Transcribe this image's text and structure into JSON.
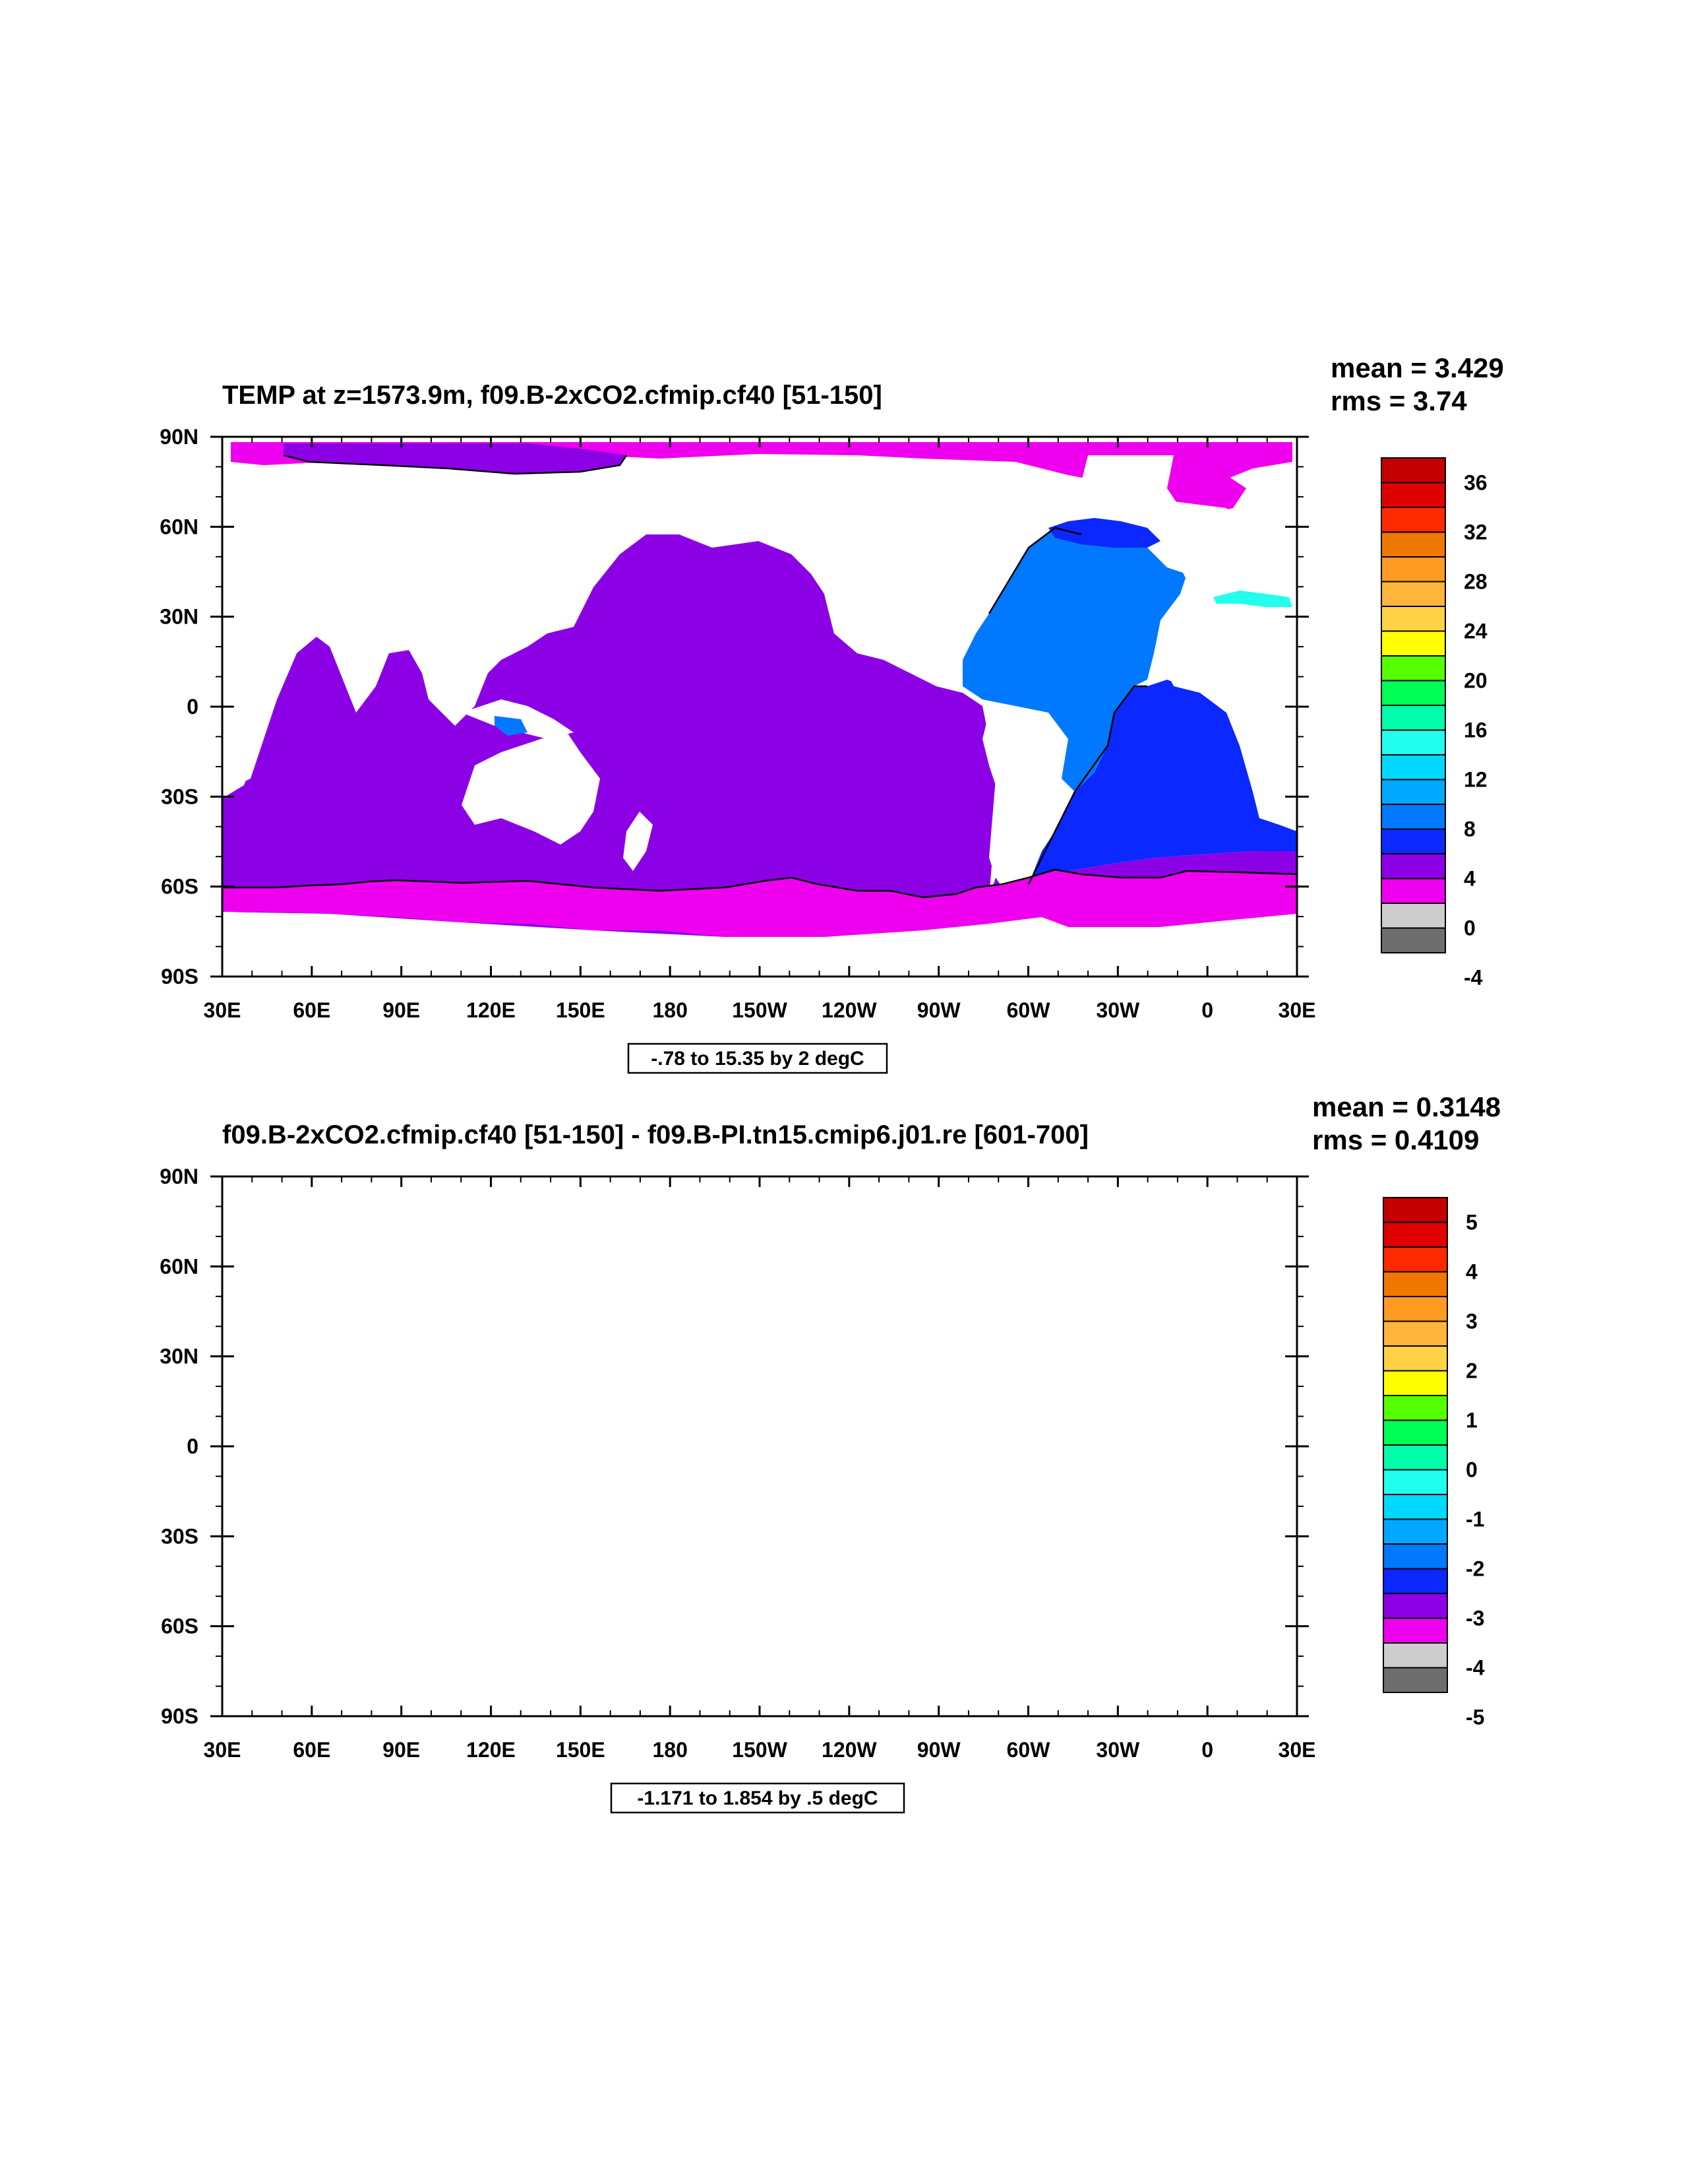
{
  "x_ticks": [
    "30E",
    "60E",
    "90E",
    "120E",
    "150E",
    "180",
    "150W",
    "120W",
    "90W",
    "60W",
    "30W",
    "0",
    "30E"
  ],
  "y_ticks": [
    "90N",
    "60N",
    "30N",
    "0",
    "30S",
    "60S",
    "90S"
  ],
  "panels": [
    {
      "title": "TEMP at z=1573.9m, f09.B-2xCO2.cfmip.cf40 [51-150]",
      "mean": "mean = 3.429",
      "rms": "rms = 3.74",
      "contour_info": "-.78 to 15.35 by 2 degC",
      "colorbar": {
        "labels": [
          "36",
          "32",
          "28",
          "24",
          "20",
          "16",
          "12",
          "8",
          "4",
          "0",
          "-4"
        ],
        "colors": [
          "#c40000",
          "#e00000",
          "#ff2a00",
          "#f07800",
          "#ff9a22",
          "#ffb43c",
          "#ffd246",
          "#ffff00",
          "#55ff00",
          "#00ff55",
          "#00ffaa",
          "#22ffee",
          "#00d8ff",
          "#00a8ff",
          "#0078ff",
          "#0a28ff",
          "#8c00e6",
          "#ee00ee",
          "#cdcdcd",
          "#6e6e6e"
        ]
      },
      "field_colors": {
        "ocean": "#8c00e6",
        "polar": "#ee00ee",
        "atlantic_north": "#0078ff",
        "atlantic_south": "#0a28ff",
        "arctic_atlantic": "#0a28ff",
        "med": "#22ffee"
      }
    },
    {
      "title": "f09.B-2xCO2.cfmip.cf40 [51-150] - f09.B-PI.tn15.cmip6.j01.re [601-700]",
      "mean": "mean = 0.3148",
      "rms": "rms = 0.4109",
      "contour_info": "-1.171 to 1.854 by .5 degC",
      "colorbar": {
        "labels": [
          "5",
          "4",
          "3",
          "2",
          "1",
          "0",
          "-1",
          "-2",
          "-3",
          "-4",
          "-5"
        ],
        "colors": [
          "#c40000",
          "#e00000",
          "#ff2a00",
          "#f07800",
          "#ff9a22",
          "#ffb43c",
          "#ffd246",
          "#ffff00",
          "#55ff00",
          "#00ff55",
          "#00ffaa",
          "#22ffee",
          "#00d8ff",
          "#00a8ff",
          "#0078ff",
          "#0a28ff",
          "#8c00e6",
          "#ee00ee",
          "#cdcdcd",
          "#6e6e6e"
        ]
      },
      "field_colors": {
        "ocean": "#00ff55",
        "polar": "#55ff00",
        "atlantic_north": "#55ff00",
        "atlantic_south": "#55ff00",
        "arctic_atlantic": "#ffff00",
        "med": "#00ffaa"
      }
    }
  ]
}
